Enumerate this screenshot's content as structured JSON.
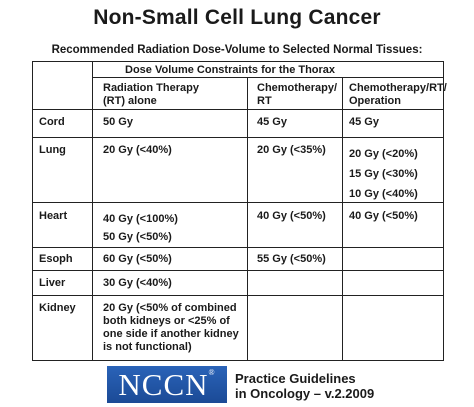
{
  "title": "Non-Small Cell Lung Cancer",
  "subtitle": "Recommended Radiation Dose-Volume to Selected Normal Tissues:",
  "table": {
    "group_header": "Dose Volume Constraints for the Thorax",
    "columns": [
      "Radiation Therapy\n(RT) alone",
      "Chemotherapy/\nRT",
      "Chemotherapy/RT/\nOperation"
    ],
    "rows": [
      {
        "tissue": "Cord",
        "rt": "50 Gy",
        "chemo_rt": "45 Gy",
        "chemo_rt_op": "45 Gy"
      },
      {
        "tissue": "Lung",
        "rt": "20 Gy (<40%)",
        "chemo_rt": "20 Gy (<35%)",
        "chemo_rt_op": "20 Gy (<20%)\n15 Gy (<30%)\n10 Gy (<40%)"
      },
      {
        "tissue": "Heart",
        "rt": "40 Gy (<100%)\n50 Gy (<50%)",
        "chemo_rt": "40 Gy (<50%)",
        "chemo_rt_op": "40 Gy (<50%)"
      },
      {
        "tissue": "Esoph",
        "rt": "60 Gy (<50%)",
        "chemo_rt": "55 Gy (<50%)",
        "chemo_rt_op": ""
      },
      {
        "tissue": "Liver",
        "rt": "30 Gy (<40%)",
        "chemo_rt": "",
        "chemo_rt_op": ""
      },
      {
        "tissue": "Kidney",
        "rt": "20 Gy (<50% of combined\nboth kidneys or <25% of\none side if another kidney\nis not functional)",
        "chemo_rt": "",
        "chemo_rt_op": ""
      }
    ]
  },
  "footer": {
    "logo": "NCCN",
    "logo_mark": "®",
    "guidelines": "Practice Guidelines\nin Oncology – v.2.2009"
  },
  "colors": {
    "logo_bg": "#1f56a8",
    "rule": "#222222"
  }
}
